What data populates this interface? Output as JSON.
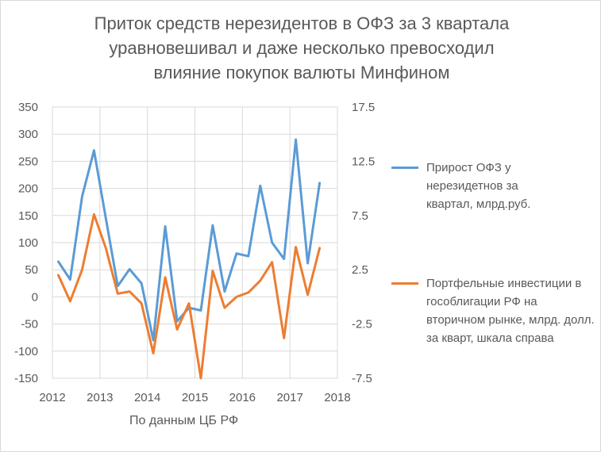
{
  "chart_data": {
    "type": "line",
    "title": "Приток средств нерезидентов в ОФЗ за 3 квартала уравновешивал и даже несколько превосходил влияние покупок валюты Минфином",
    "title_lines": [
      "Приток средств нерезидентов в ОФЗ за 3 квартала",
      "уравновешивал и даже несколько превосходил",
      "влияние покупок валюты Минфином"
    ],
    "note": "По данным ЦБ РФ",
    "xlim": [
      2012,
      2018
    ],
    "x_ticks": [
      "2012",
      "2013",
      "2014",
      "2015",
      "2016",
      "2017",
      "2018"
    ],
    "y_left": {
      "ylim": [
        -150,
        350
      ],
      "ticks": [
        "350",
        "300",
        "250",
        "200",
        "150",
        "100",
        "50",
        "0",
        "-50",
        "-100",
        "-150"
      ]
    },
    "y_right": {
      "ylim": [
        -7.5,
        17.5
      ],
      "ticks": [
        "17.5",
        "12.5",
        "7.5",
        "2.5",
        "-2.5",
        "-7.5"
      ]
    },
    "grid": true,
    "legend_position": "right",
    "x": [
      2012.125,
      2012.375,
      2012.625,
      2012.875,
      2013.125,
      2013.375,
      2013.625,
      2013.875,
      2014.125,
      2014.375,
      2014.625,
      2014.875,
      2015.125,
      2015.375,
      2015.625,
      2015.875,
      2016.125,
      2016.375,
      2016.625,
      2016.875,
      2017.125,
      2017.375,
      2017.625
    ],
    "series": [
      {
        "name": "Прирост ОФЗ у нерезидетнов за квартал, млрд.руб.",
        "axis": "left",
        "color": "#5b9bd5",
        "values": [
          65,
          32,
          185,
          270,
          145,
          20,
          51,
          25,
          -80,
          130,
          -45,
          -20,
          -25,
          132,
          10,
          80,
          75,
          205,
          100,
          70,
          290,
          62,
          210
        ]
      },
      {
        "name": "Портфельные инвестиции в гособлигации РФ на вторичном рынке, млрд. долл. за кварт, шкала справа",
        "axis": "right",
        "color": "#ed7d31",
        "values": [
          2.0,
          -0.4,
          2.5,
          7.6,
          4.5,
          0.3,
          0.5,
          -0.6,
          -5.2,
          1.8,
          -3.0,
          -0.6,
          -7.5,
          2.4,
          -1.0,
          0.0,
          0.4,
          1.5,
          3.2,
          -3.8,
          4.6,
          0.2,
          4.5
        ]
      }
    ]
  },
  "legend": [
    {
      "label": "Прирост ОФЗ у нерезидетнов за квартал, млрд.руб.",
      "color": "#5b9bd5"
    },
    {
      "label": "Портфельные инвестиции в гособлигации РФ на вторичном рынке, млрд. долл. за кварт, шкала справа",
      "color": "#ed7d31"
    }
  ],
  "colors": {
    "grid": "#d9d9d9",
    "text": "#595959"
  }
}
